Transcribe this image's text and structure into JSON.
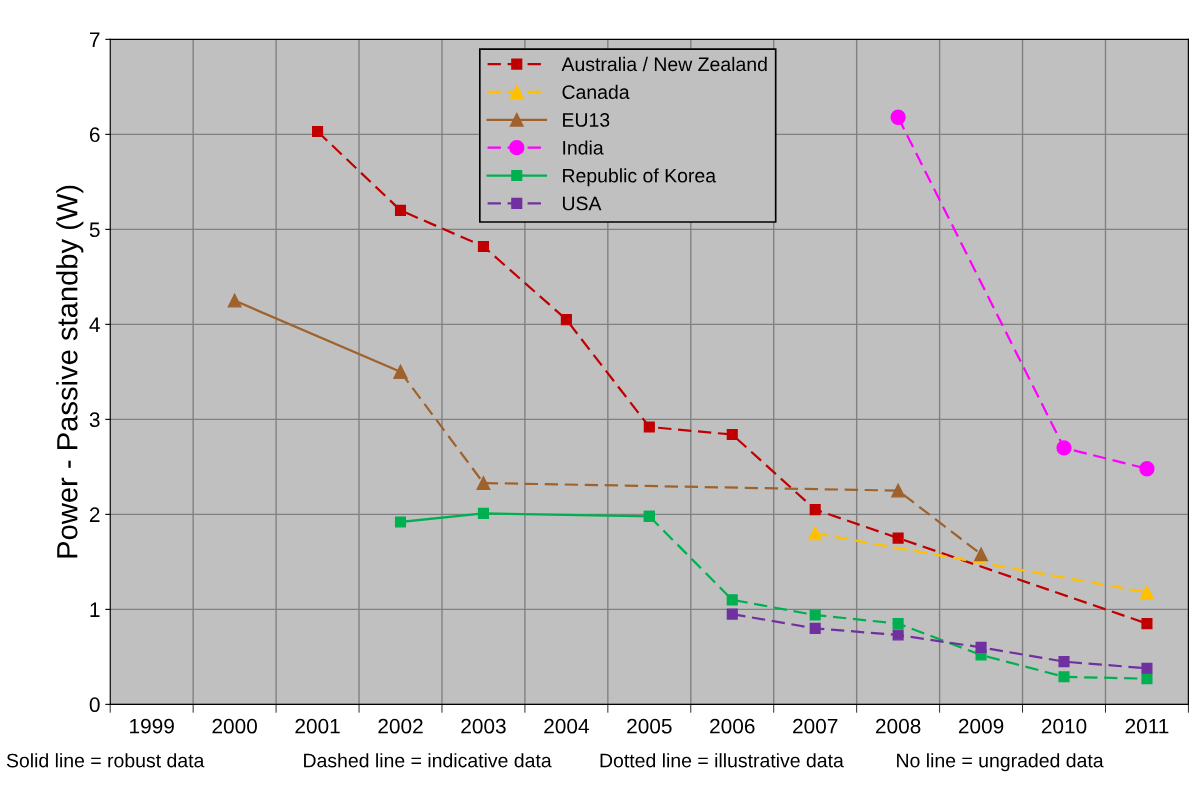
{
  "chart_data": {
    "type": "line",
    "ylabel": "Power - Passive standby (W)",
    "categories": [
      "1999",
      "2000",
      "2001",
      "2002",
      "2003",
      "2004",
      "2005",
      "2006",
      "2007",
      "2008",
      "2009",
      "2010",
      "2011"
    ],
    "series": [
      {
        "name": "Australia / New Zealand",
        "color": "#c00000",
        "marker": "square",
        "line_style": "dashed",
        "values": [
          null,
          null,
          6.03,
          5.2,
          4.82,
          4.05,
          2.92,
          2.84,
          2.05,
          1.75,
          null,
          null,
          0.85
        ]
      },
      {
        "name": "Canada",
        "color": "#ffc000",
        "marker": "triangle",
        "line_style": "dashed",
        "values": [
          null,
          null,
          null,
          null,
          null,
          null,
          null,
          null,
          1.8,
          null,
          null,
          null,
          1.18
        ]
      },
      {
        "name": "EU13",
        "color": "#a0622d",
        "marker": "triangle",
        "line_style": "solid",
        "values": [
          null,
          4.25,
          null,
          3.5,
          null,
          null,
          null,
          null,
          null,
          null,
          null,
          null,
          null
        ]
      },
      {
        "color": "#a0622d",
        "marker": "triangle",
        "line_style": "dashed",
        "values": [
          null,
          null,
          null,
          3.5,
          2.33,
          null,
          null,
          null,
          null,
          2.25,
          1.58,
          null,
          null
        ]
      },
      {
        "name": "India",
        "color": "#ff00ff",
        "marker": "circle",
        "line_style": "dashed",
        "values": [
          null,
          null,
          null,
          null,
          null,
          null,
          null,
          null,
          null,
          6.18,
          null,
          2.7,
          2.48
        ]
      },
      {
        "name": "Republic of Korea",
        "color": "#00b050",
        "marker": "square",
        "line_style": "solid",
        "values": [
          null,
          null,
          null,
          1.92,
          2.01,
          null,
          1.98,
          null,
          null,
          null,
          null,
          null,
          null
        ]
      },
      {
        "color": "#00b050",
        "marker": "square",
        "line_style": "dashed",
        "values": [
          null,
          null,
          null,
          null,
          null,
          null,
          1.98,
          1.1,
          0.94,
          0.85,
          0.52,
          0.29,
          0.27
        ]
      },
      {
        "name": "USA",
        "color": "#7030a0",
        "marker": "square",
        "line_style": "dashed",
        "values": [
          null,
          null,
          null,
          null,
          null,
          null,
          null,
          0.95,
          0.8,
          0.73,
          0.6,
          0.45,
          0.38
        ]
      }
    ],
    "ylim": [
      0,
      7
    ],
    "yticks": [
      0,
      1,
      2,
      3,
      4,
      5,
      6,
      7
    ],
    "grid": true,
    "legend": "top",
    "annotations": [
      "Solid line = robust data",
      "Dashed line = indicative data",
      "Dotted line = illustrative data",
      "No line = ungraded data"
    ]
  }
}
